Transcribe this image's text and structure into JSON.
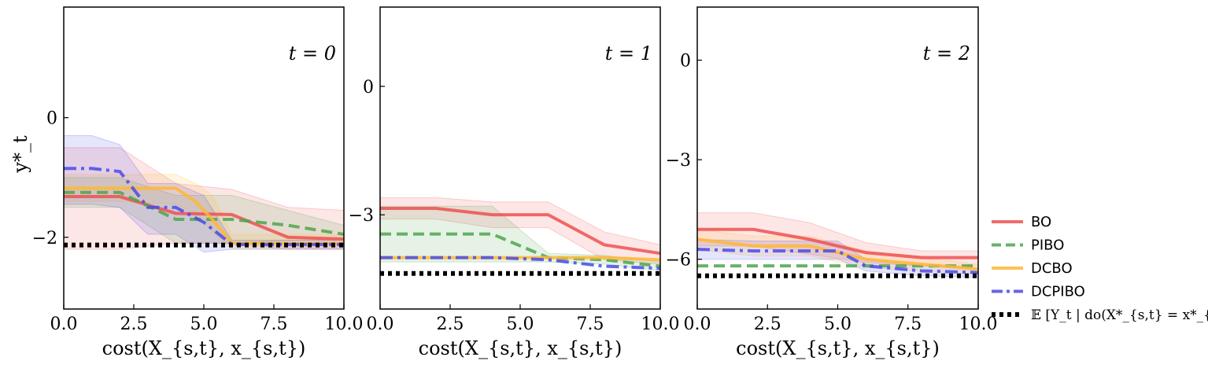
{
  "chart_data": [
    {
      "type": "line",
      "annotation": "t = 0",
      "xlabel": "cost(X_{s,t}, x_{s,t})",
      "ylabel": "y*_t",
      "xlim": [
        0,
        10
      ],
      "ylim": [
        -3.2,
        1.85
      ],
      "xticks": [
        "0.0",
        "2.5",
        "5.0",
        "7.5",
        "10.0"
      ],
      "yticks": [
        {
          "value": 0,
          "label": "0"
        },
        {
          "value": -2,
          "label": "−2"
        }
      ],
      "series": [
        {
          "name": "BO",
          "x": [
            0,
            2,
            4,
            6,
            8,
            10
          ],
          "y": [
            -1.32,
            -1.32,
            -1.6,
            -1.62,
            -2.0,
            -2.03
          ],
          "lo": [
            -2.2,
            -2.2,
            -2.1,
            -2.1,
            -2.2,
            -2.2
          ],
          "hi": [
            -0.5,
            -0.5,
            -1.1,
            -1.2,
            -1.5,
            -1.55
          ]
        },
        {
          "name": "PIBO",
          "x": [
            0,
            2,
            4,
            6,
            8,
            10
          ],
          "y": [
            -1.25,
            -1.25,
            -1.7,
            -1.7,
            -1.8,
            -1.95
          ],
          "lo": [
            -1.5,
            -1.5,
            -2.1,
            -2.1,
            -2.05,
            -2.05
          ],
          "hi": [
            -1.0,
            -1.0,
            -1.3,
            -1.3,
            -1.55,
            -1.8
          ]
        },
        {
          "name": "DCBO",
          "x": [
            0,
            2,
            4,
            4.7,
            5.3,
            6,
            10
          ],
          "y": [
            -1.18,
            -1.18,
            -1.18,
            -1.4,
            -1.7,
            -2.1,
            -2.1
          ],
          "lo": [
            -1.4,
            -1.4,
            -1.45,
            -1.6,
            -1.9,
            -2.2,
            -2.2
          ],
          "hi": [
            -0.95,
            -0.95,
            -0.95,
            -1.1,
            -1.3,
            -1.95,
            -1.95
          ]
        },
        {
          "name": "DCPIBO",
          "x": [
            0,
            1,
            2,
            3,
            4,
            5,
            6,
            10
          ],
          "y": [
            -0.85,
            -0.85,
            -0.9,
            -1.5,
            -1.5,
            -1.75,
            -2.12,
            -2.12
          ],
          "lo": [
            -1.45,
            -1.45,
            -1.5,
            -1.95,
            -1.95,
            -2.25,
            -2.2,
            -2.2
          ],
          "hi": [
            -0.3,
            -0.3,
            -0.45,
            -1.1,
            -1.1,
            -1.3,
            -2.05,
            -2.05
          ]
        },
        {
          "name": "E",
          "x": [
            0,
            10
          ],
          "y": [
            -2.13,
            -2.13
          ]
        }
      ]
    },
    {
      "type": "line",
      "annotation": "t = 1",
      "xlabel": "cost(X_{s,t}, x_{s,t})",
      "ylabel": "",
      "xlim": [
        0,
        10
      ],
      "ylim": [
        -5.2,
        1.85
      ],
      "xticks": [
        "0.0",
        "2.5",
        "5.0",
        "7.5",
        "10.0"
      ],
      "yticks": [
        {
          "value": 0,
          "label": "0"
        },
        {
          "value": -3,
          "label": "−3"
        }
      ],
      "series": [
        {
          "name": "BO",
          "x": [
            0,
            2,
            4,
            6,
            8,
            10
          ],
          "y": [
            -2.85,
            -2.85,
            -3.0,
            -3.0,
            -3.7,
            -3.9
          ],
          "lo": [
            -3.1,
            -3.1,
            -3.3,
            -3.3,
            -4.05,
            -4.15
          ],
          "hi": [
            -2.6,
            -2.6,
            -2.7,
            -2.7,
            -3.4,
            -3.7
          ]
        },
        {
          "name": "PIBO",
          "x": [
            0,
            2,
            4,
            6,
            8,
            10
          ],
          "y": [
            -3.45,
            -3.45,
            -3.45,
            -4.0,
            -4.05,
            -4.2
          ],
          "lo": [
            -4.1,
            -4.1,
            -4.1,
            -4.1,
            -4.15,
            -4.3
          ],
          "hi": [
            -2.8,
            -2.8,
            -2.8,
            -3.9,
            -3.95,
            -4.1
          ]
        },
        {
          "name": "DCBO",
          "x": [
            0,
            2,
            4,
            6,
            8,
            10
          ],
          "y": [
            -4.0,
            -4.0,
            -4.0,
            -4.0,
            -4.0,
            -4.05
          ]
        },
        {
          "name": "DCPIBO",
          "x": [
            0,
            2,
            4,
            6,
            8,
            10
          ],
          "y": [
            -4.0,
            -4.0,
            -4.0,
            -4.05,
            -4.2,
            -4.25
          ]
        },
        {
          "name": "E",
          "x": [
            0,
            10
          ],
          "y": [
            -4.37,
            -4.37
          ]
        }
      ]
    },
    {
      "type": "line",
      "annotation": "t = 2",
      "xlabel": "cost(X_{s,t}, x_{s,t})",
      "ylabel": "",
      "xlim": [
        0,
        10
      ],
      "ylim": [
        -7.5,
        1.6
      ],
      "xticks": [
        "0.0",
        "2.5",
        "5.0",
        "7.5",
        "10.0"
      ],
      "yticks": [
        {
          "value": 0,
          "label": "0"
        },
        {
          "value": -3,
          "label": "−3"
        },
        {
          "value": -6,
          "label": "−6"
        }
      ],
      "series": [
        {
          "name": "BO",
          "x": [
            0,
            2,
            4,
            6,
            8,
            10
          ],
          "y": [
            -5.1,
            -5.1,
            -5.4,
            -5.8,
            -5.95,
            -5.95
          ],
          "lo": [
            -5.6,
            -5.6,
            -5.85,
            -6.1,
            -6.2,
            -6.2
          ],
          "hi": [
            -4.6,
            -4.6,
            -4.9,
            -5.5,
            -5.75,
            -5.75
          ]
        },
        {
          "name": "PIBO",
          "x": [
            0,
            10
          ],
          "y": [
            -6.2,
            -6.2
          ]
        },
        {
          "name": "DCBO",
          "x": [
            0,
            2,
            4,
            6,
            8,
            10
          ],
          "y": [
            -5.4,
            -5.6,
            -5.6,
            -6.0,
            -6.15,
            -6.3
          ],
          "lo": [
            -5.7,
            -5.9,
            -5.9,
            -6.25,
            -6.35,
            -6.45
          ],
          "hi": [
            -5.1,
            -5.3,
            -5.3,
            -5.75,
            -5.95,
            -6.15
          ]
        },
        {
          "name": "DCPIBO",
          "x": [
            0,
            2,
            4,
            5,
            6,
            8,
            10
          ],
          "y": [
            -5.7,
            -5.75,
            -5.75,
            -5.75,
            -6.2,
            -6.35,
            -6.4
          ],
          "lo": [
            -6.0,
            -6.0,
            -6.0,
            -6.0,
            -6.35,
            -6.5,
            -6.55
          ],
          "hi": [
            -5.4,
            -5.45,
            -5.45,
            -5.45,
            -6.0,
            -6.2,
            -6.25
          ]
        },
        {
          "name": "E",
          "x": [
            0,
            10
          ],
          "y": [
            -6.5,
            -6.5
          ]
        }
      ]
    }
  ],
  "legend": {
    "position": "right",
    "items": [
      {
        "label": "BO",
        "color": "#f05050",
        "style": "solid"
      },
      {
        "label": "PIBO",
        "color": "#4ca64c",
        "style": "dashed"
      },
      {
        "label": "DCBO",
        "color": "#ffb733",
        "style": "solid"
      },
      {
        "label": "DCPIBO",
        "color": "#4a4ae8",
        "style": "dashdot"
      },
      {
        "label": "𝔼 [Y_t | do(X*_{s,t} = x*_{s,t})]",
        "color": "#000000",
        "style": "dotted"
      }
    ]
  },
  "colors": {
    "BO": "#f05050",
    "PIBO": "#4ca64c",
    "DCBO": "#ffb733",
    "DCPIBO": "#4a4ae8",
    "E": "#000000"
  }
}
